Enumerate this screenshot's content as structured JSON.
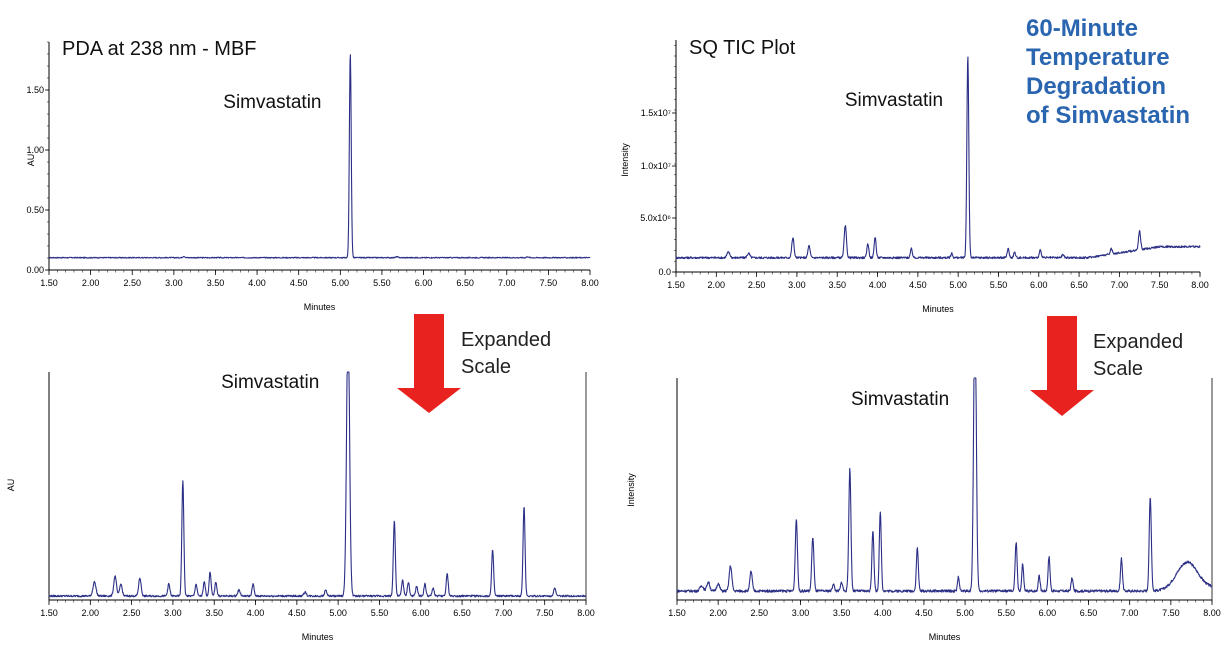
{
  "heading": {
    "lines": [
      "60-Minute",
      "Temperature",
      "Degradation",
      "of Simvastatin"
    ],
    "color": "#2a65b0"
  },
  "colors": {
    "trace": "#2b2f85",
    "arrow": "#e8231f",
    "axis": "#000000"
  },
  "arrows": [
    {
      "label_line1": "Expanded",
      "label_line2": "Scale"
    },
    {
      "label_line1": "Expanded",
      "label_line2": "Scale"
    }
  ],
  "chart_data": [
    {
      "type": "line",
      "title": "PDA at 238 nm - MBF",
      "xlabel": "Minutes",
      "ylabel": "AU",
      "xlim": [
        1.5,
        8.0
      ],
      "ylim": [
        0,
        1.8
      ],
      "x_ticks": [
        "1.50",
        "2.00",
        "2.50",
        "3.00",
        "3.50",
        "4.00",
        "4.50",
        "5.00",
        "5.50",
        "6.00",
        "6.50",
        "7.00",
        "7.50",
        "8.00"
      ],
      "y_ticks": [
        "0.00",
        "0.50",
        "1.00",
        "1.50"
      ],
      "baseline": 0.1,
      "noise": 0.004,
      "annotation": {
        "text": "Simvastatin",
        "x": 5.12
      },
      "peaks": [
        {
          "x": 3.12,
          "h": 0.012,
          "w": 0.012
        },
        {
          "x": 5.12,
          "h": 1.66,
          "w": 0.011
        },
        {
          "x": 5.68,
          "h": 0.008,
          "w": 0.012
        },
        {
          "x": 7.25,
          "h": 0.008,
          "w": 0.012
        }
      ]
    },
    {
      "type": "line",
      "title": "SQ TIC Plot",
      "xlabel": "Minutes",
      "ylabel": "Intensity",
      "xlim": [
        1.5,
        8.0
      ],
      "ylim": [
        0,
        20000000
      ],
      "x_ticks": [
        "1.50",
        "2.00",
        "2.50",
        "3.00",
        "3.50",
        "4.00",
        "4.50",
        "5.00",
        "5.50",
        "6.00",
        "6.50",
        "7.00",
        "7.50",
        "8.00"
      ],
      "y_ticks": [
        "0.0",
        "5.0x10⁶",
        "1.0x10⁷",
        "1.5x10⁷"
      ],
      "baseline": 1300000,
      "baseline_end": 2300000,
      "noise": 90000,
      "annotation": {
        "text": "Simvastatin",
        "x": 5.12
      },
      "peaks": [
        {
          "x": 2.15,
          "h": 500000,
          "w": 0.018
        },
        {
          "x": 2.4,
          "h": 400000,
          "w": 0.016
        },
        {
          "x": 2.95,
          "h": 1800000,
          "w": 0.014
        },
        {
          "x": 3.15,
          "h": 1100000,
          "w": 0.013
        },
        {
          "x": 3.6,
          "h": 2900000,
          "w": 0.014
        },
        {
          "x": 3.88,
          "h": 1300000,
          "w": 0.012
        },
        {
          "x": 3.97,
          "h": 1900000,
          "w": 0.012
        },
        {
          "x": 4.42,
          "h": 800000,
          "w": 0.012
        },
        {
          "x": 4.92,
          "h": 400000,
          "w": 0.011
        },
        {
          "x": 5.12,
          "h": 18400000,
          "w": 0.012
        },
        {
          "x": 5.62,
          "h": 800000,
          "w": 0.012
        },
        {
          "x": 5.7,
          "h": 500000,
          "w": 0.011
        },
        {
          "x": 6.02,
          "h": 700000,
          "w": 0.012
        },
        {
          "x": 6.3,
          "h": 300000,
          "w": 0.012
        },
        {
          "x": 6.9,
          "h": 500000,
          "w": 0.012
        },
        {
          "x": 7.25,
          "h": 1700000,
          "w": 0.013
        }
      ]
    },
    {
      "type": "line",
      "title": "",
      "xlabel": "Minutes",
      "ylabel": "AU",
      "xlim": [
        1.5,
        8.0
      ],
      "ylim": [
        0,
        100
      ],
      "x_ticks": [
        "1.50",
        "2.00",
        "2.50",
        "3.00",
        "3.50",
        "4.00",
        "4.50",
        "5.00",
        "5.50",
        "6.00",
        "6.50",
        "7.00",
        "7.50",
        "8.00"
      ],
      "y_ticks": [],
      "baseline": 2,
      "noise": 0.45,
      "annotation": {
        "text": "Simvastatin",
        "x": 5.12
      },
      "peaks": [
        {
          "x": 2.05,
          "h": 7,
          "w": 0.018
        },
        {
          "x": 2.3,
          "h": 10,
          "w": 0.016
        },
        {
          "x": 2.37,
          "h": 6,
          "w": 0.015
        },
        {
          "x": 2.6,
          "h": 9,
          "w": 0.015
        },
        {
          "x": 2.95,
          "h": 6,
          "w": 0.013
        },
        {
          "x": 3.12,
          "h": 58,
          "w": 0.012
        },
        {
          "x": 3.28,
          "h": 6,
          "w": 0.012
        },
        {
          "x": 3.38,
          "h": 7,
          "w": 0.012
        },
        {
          "x": 3.45,
          "h": 12,
          "w": 0.012
        },
        {
          "x": 3.52,
          "h": 7,
          "w": 0.012
        },
        {
          "x": 3.8,
          "h": 3,
          "w": 0.015
        },
        {
          "x": 3.97,
          "h": 6,
          "w": 0.012
        },
        {
          "x": 4.6,
          "h": 2,
          "w": 0.015
        },
        {
          "x": 4.85,
          "h": 3,
          "w": 0.013
        },
        {
          "x": 5.12,
          "h": 140,
          "w": 0.018
        },
        {
          "x": 5.68,
          "h": 38,
          "w": 0.012
        },
        {
          "x": 5.78,
          "h": 8,
          "w": 0.012
        },
        {
          "x": 5.85,
          "h": 7,
          "w": 0.012
        },
        {
          "x": 5.95,
          "h": 5,
          "w": 0.012
        },
        {
          "x": 6.05,
          "h": 6,
          "w": 0.012
        },
        {
          "x": 6.15,
          "h": 4,
          "w": 0.012
        },
        {
          "x": 6.32,
          "h": 11,
          "w": 0.012
        },
        {
          "x": 6.87,
          "h": 23,
          "w": 0.012
        },
        {
          "x": 7.25,
          "h": 45,
          "w": 0.012
        },
        {
          "x": 7.62,
          "h": 4,
          "w": 0.013
        }
      ]
    },
    {
      "type": "line",
      "title": "",
      "xlabel": "Minutes",
      "ylabel": "Intensity",
      "xlim": [
        1.5,
        8.0
      ],
      "ylim": [
        0,
        100
      ],
      "x_ticks": [
        "1.50",
        "2.00",
        "2.50",
        "3.00",
        "3.50",
        "4.00",
        "4.50",
        "5.00",
        "5.50",
        "6.00",
        "6.50",
        "7.00",
        "7.50",
        "8.00"
      ],
      "y_ticks": [],
      "baseline": 5,
      "baseline_hump": {
        "x": 7.7,
        "h": 16,
        "w": 0.13
      },
      "noise": 0.7,
      "annotation": {
        "text": "Simvastatin",
        "x": 5.12
      },
      "peaks": [
        {
          "x": 1.8,
          "h": 3,
          "w": 0.02
        },
        {
          "x": 1.88,
          "h": 5,
          "w": 0.018
        },
        {
          "x": 2.0,
          "h": 4,
          "w": 0.018
        },
        {
          "x": 2.15,
          "h": 14,
          "w": 0.016
        },
        {
          "x": 2.4,
          "h": 11,
          "w": 0.014
        },
        {
          "x": 2.95,
          "h": 40,
          "w": 0.013
        },
        {
          "x": 3.15,
          "h": 30,
          "w": 0.013
        },
        {
          "x": 3.4,
          "h": 4,
          "w": 0.012
        },
        {
          "x": 3.5,
          "h": 5,
          "w": 0.012
        },
        {
          "x": 3.6,
          "h": 68,
          "w": 0.013
        },
        {
          "x": 3.88,
          "h": 34,
          "w": 0.012
        },
        {
          "x": 3.97,
          "h": 44,
          "w": 0.012
        },
        {
          "x": 4.42,
          "h": 24,
          "w": 0.012
        },
        {
          "x": 4.92,
          "h": 8,
          "w": 0.011
        },
        {
          "x": 5.12,
          "h": 160,
          "w": 0.016
        },
        {
          "x": 5.62,
          "h": 27,
          "w": 0.012
        },
        {
          "x": 5.7,
          "h": 15,
          "w": 0.011
        },
        {
          "x": 5.9,
          "h": 9,
          "w": 0.011
        },
        {
          "x": 6.02,
          "h": 19,
          "w": 0.012
        },
        {
          "x": 6.3,
          "h": 7,
          "w": 0.012
        },
        {
          "x": 6.9,
          "h": 18,
          "w": 0.012
        },
        {
          "x": 7.25,
          "h": 52,
          "w": 0.013
        }
      ]
    }
  ]
}
